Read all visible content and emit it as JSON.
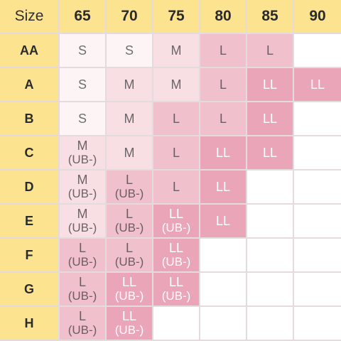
{
  "corner_label": "Size",
  "columns": [
    "65",
    "70",
    "75",
    "80",
    "85",
    "90"
  ],
  "rows": [
    {
      "label": "AA",
      "cells": [
        {
          "size": "S",
          "note": "",
          "level": 0
        },
        {
          "size": "S",
          "note": "",
          "level": 0
        },
        {
          "size": "M",
          "note": "",
          "level": 1
        },
        {
          "size": "L",
          "note": "",
          "level": 2
        },
        {
          "size": "L",
          "note": "",
          "level": 2
        },
        null
      ]
    },
    {
      "label": "A",
      "cells": [
        {
          "size": "S",
          "note": "",
          "level": 0
        },
        {
          "size": "M",
          "note": "",
          "level": 1
        },
        {
          "size": "M",
          "note": "",
          "level": 1
        },
        {
          "size": "L",
          "note": "",
          "level": 2
        },
        {
          "size": "LL",
          "note": "",
          "level": 3
        },
        {
          "size": "LL",
          "note": "",
          "level": 3
        }
      ]
    },
    {
      "label": "B",
      "cells": [
        {
          "size": "S",
          "note": "",
          "level": 0
        },
        {
          "size": "M",
          "note": "",
          "level": 1
        },
        {
          "size": "L",
          "note": "",
          "level": 2
        },
        {
          "size": "L",
          "note": "",
          "level": 2
        },
        {
          "size": "LL",
          "note": "",
          "level": 3
        },
        null
      ]
    },
    {
      "label": "C",
      "cells": [
        {
          "size": "M",
          "note": "(UB-)",
          "level": 1
        },
        {
          "size": "M",
          "note": "",
          "level": 1
        },
        {
          "size": "L",
          "note": "",
          "level": 2
        },
        {
          "size": "LL",
          "note": "",
          "level": 3
        },
        {
          "size": "LL",
          "note": "",
          "level": 3
        },
        null
      ]
    },
    {
      "label": "D",
      "cells": [
        {
          "size": "M",
          "note": "(UB-)",
          "level": 1
        },
        {
          "size": "L",
          "note": "(UB-)",
          "level": 2
        },
        {
          "size": "L",
          "note": "",
          "level": 2
        },
        {
          "size": "LL",
          "note": "",
          "level": 3
        },
        null,
        null
      ]
    },
    {
      "label": "E",
      "cells": [
        {
          "size": "M",
          "note": "(UB-)",
          "level": 1
        },
        {
          "size": "L",
          "note": "(UB-)",
          "level": 2
        },
        {
          "size": "LL",
          "note": "(UB-)",
          "level": 3
        },
        {
          "size": "LL",
          "note": "",
          "level": 3
        },
        null,
        null
      ]
    },
    {
      "label": "F",
      "cells": [
        {
          "size": "L",
          "note": "(UB-)",
          "level": 2
        },
        {
          "size": "L",
          "note": "(UB-)",
          "level": 2
        },
        {
          "size": "LL",
          "note": "(UB-)",
          "level": 3
        },
        null,
        null,
        null
      ]
    },
    {
      "label": "G",
      "cells": [
        {
          "size": "L",
          "note": "(UB-)",
          "level": 2
        },
        {
          "size": "LL",
          "note": "(UB-)",
          "level": 3
        },
        {
          "size": "LL",
          "note": "(UB-)",
          "level": 3
        },
        null,
        null,
        null
      ]
    },
    {
      "label": "H",
      "cells": [
        {
          "size": "L",
          "note": "(UB-)",
          "level": 2
        },
        {
          "size": "LL",
          "note": "(UB-)",
          "level": 3
        },
        null,
        null,
        null,
        null
      ]
    }
  ],
  "colors": {
    "header_bg": "#fbe38f",
    "empty_bg": "#ffffff",
    "grid_line": "#e4dcdc",
    "level_bg": [
      "#fdf5f5",
      "#f8dfe3",
      "#f0c0cc",
      "#eaa6b8"
    ]
  }
}
